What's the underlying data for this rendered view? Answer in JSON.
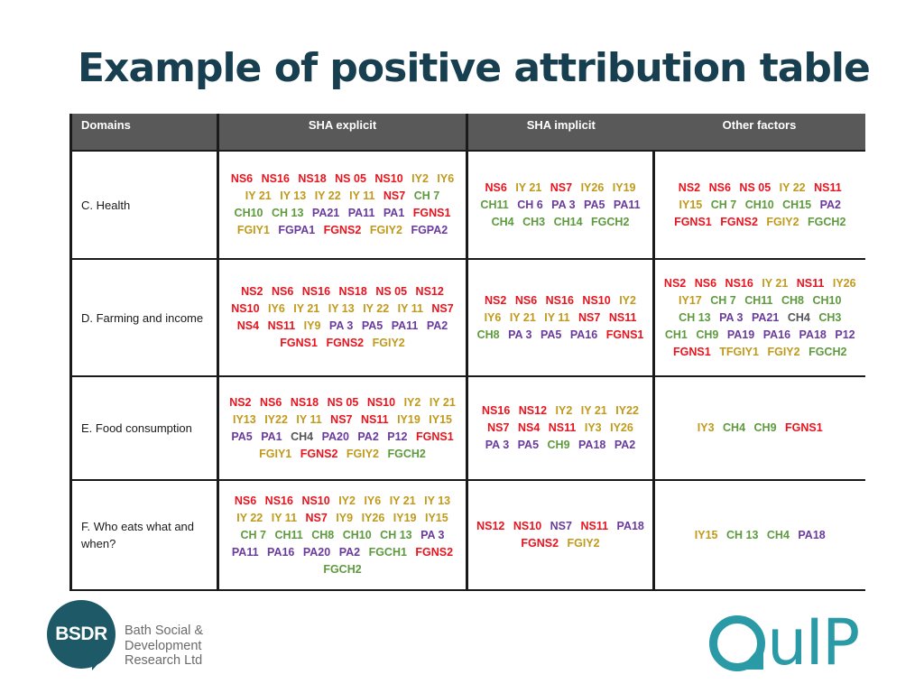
{
  "slide": {
    "title": "Example of positive attribution table"
  },
  "legend_colors": {
    "NS": "#e8141e",
    "IY": "#c19a1b",
    "CH": "#5e9a3e",
    "PA": "#6a3b9c",
    "other": "#555555"
  },
  "table": {
    "headers": [
      "Domains",
      "SHA explicit",
      "SHA implicit",
      "Other factors"
    ],
    "rows": [
      {
        "domain": "C. Health",
        "explicit": [
          {
            "t": "NS6",
            "c": "ns"
          },
          {
            "t": "NS16",
            "c": "ns"
          },
          {
            "t": "NS18",
            "c": "ns"
          },
          {
            "t": "NS 05",
            "c": "ns"
          },
          {
            "t": "NS10",
            "c": "ns"
          },
          {
            "t": "IY2",
            "c": "iy"
          },
          {
            "t": "IY6",
            "c": "iy"
          },
          {
            "t": "IY 21",
            "c": "iy"
          },
          {
            "t": "IY 13",
            "c": "iy"
          },
          {
            "t": "IY 22",
            "c": "iy"
          },
          {
            "t": "IY 11",
            "c": "iy"
          },
          {
            "t": "NS7",
            "c": "ns"
          },
          {
            "t": "CH 7",
            "c": "ch"
          },
          {
            "t": "CH10",
            "c": "ch"
          },
          {
            "t": "CH 13",
            "c": "ch"
          },
          {
            "t": "PA21",
            "c": "pa"
          },
          {
            "t": "PA11",
            "c": "pa"
          },
          {
            "t": "PA1",
            "c": "pa"
          },
          {
            "t": "FGNS1",
            "c": "ns"
          },
          {
            "t": "FGIY1",
            "c": "iy"
          },
          {
            "t": "FGPA1",
            "c": "pa"
          },
          {
            "t": "FGNS2",
            "c": "ns"
          },
          {
            "t": "FGIY2",
            "c": "iy"
          },
          {
            "t": "FGPA2",
            "c": "pa"
          }
        ],
        "implicit": [
          {
            "t": "NS6",
            "c": "ns"
          },
          {
            "t": "IY 21",
            "c": "iy"
          },
          {
            "t": "NS7",
            "c": "ns"
          },
          {
            "t": "IY26",
            "c": "iy"
          },
          {
            "t": "IY19",
            "c": "iy"
          },
          {
            "t": "CH11",
            "c": "ch"
          },
          {
            "t": "CH 6",
            "c": "pa"
          },
          {
            "t": "PA 3",
            "c": "pa"
          },
          {
            "t": "PA5",
            "c": "pa"
          },
          {
            "t": "PA11",
            "c": "pa"
          },
          {
            "t": "CH4",
            "c": "ch"
          },
          {
            "t": "CH3",
            "c": "ch"
          },
          {
            "t": "CH14",
            "c": "ch"
          },
          {
            "t": "FGCH2",
            "c": "ch"
          }
        ],
        "other": [
          {
            "t": "NS2",
            "c": "ns"
          },
          {
            "t": "NS6",
            "c": "ns"
          },
          {
            "t": "NS 05",
            "c": "ns"
          },
          {
            "t": "IY 22",
            "c": "iy"
          },
          {
            "t": "NS11",
            "c": "ns"
          },
          {
            "t": "IY15",
            "c": "iy"
          },
          {
            "t": "CH 7",
            "c": "ch"
          },
          {
            "t": "CH10",
            "c": "ch"
          },
          {
            "t": "CH15",
            "c": "ch"
          },
          {
            "t": "PA2",
            "c": "pa"
          },
          {
            "t": "FGNS1",
            "c": "ns"
          },
          {
            "t": "FGNS2",
            "c": "ns"
          },
          {
            "t": "FGIY2",
            "c": "iy"
          },
          {
            "t": "FGCH2",
            "c": "ch"
          }
        ]
      },
      {
        "domain": "D. Farming and income",
        "explicit": [
          {
            "t": "NS2",
            "c": "ns"
          },
          {
            "t": "NS6",
            "c": "ns"
          },
          {
            "t": "NS16",
            "c": "ns"
          },
          {
            "t": "NS18",
            "c": "ns"
          },
          {
            "t": "NS 05",
            "c": "ns"
          },
          {
            "t": "NS12",
            "c": "ns"
          },
          {
            "t": "NS10",
            "c": "ns"
          },
          {
            "t": "IY6",
            "c": "iy"
          },
          {
            "t": "IY 21",
            "c": "iy"
          },
          {
            "t": "IY 13",
            "c": "iy"
          },
          {
            "t": "IY 22",
            "c": "iy"
          },
          {
            "t": "IY 11",
            "c": "iy"
          },
          {
            "t": "NS7",
            "c": "ns"
          },
          {
            "t": "NS4",
            "c": "ns"
          },
          {
            "t": "NS11",
            "c": "ns"
          },
          {
            "t": "IY9",
            "c": "iy"
          },
          {
            "t": "PA 3",
            "c": "pa"
          },
          {
            "t": "PA5",
            "c": "pa"
          },
          {
            "t": "PA11",
            "c": "pa"
          },
          {
            "t": "PA2",
            "c": "pa"
          },
          {
            "t": "FGNS1",
            "c": "ns"
          },
          {
            "t": "FGNS2",
            "c": "ns"
          },
          {
            "t": "FGIY2",
            "c": "iy"
          }
        ],
        "implicit": [
          {
            "t": "NS2",
            "c": "ns"
          },
          {
            "t": "NS6",
            "c": "ns"
          },
          {
            "t": "NS16",
            "c": "ns"
          },
          {
            "t": "NS10",
            "c": "ns"
          },
          {
            "t": "IY2",
            "c": "iy"
          },
          {
            "t": "IY6",
            "c": "iy"
          },
          {
            "t": "IY 21",
            "c": "iy"
          },
          {
            "t": "IY 11",
            "c": "iy"
          },
          {
            "t": "NS7",
            "c": "ns"
          },
          {
            "t": "NS11",
            "c": "ns"
          },
          {
            "t": "CH8",
            "c": "ch"
          },
          {
            "t": "PA 3",
            "c": "pa"
          },
          {
            "t": "PA5",
            "c": "pa"
          },
          {
            "t": "PA16",
            "c": "pa"
          },
          {
            "t": "FGNS1",
            "c": "ns"
          }
        ],
        "other": [
          {
            "t": "NS2",
            "c": "ns"
          },
          {
            "t": "NS6",
            "c": "ns"
          },
          {
            "t": "NS16",
            "c": "ns"
          },
          {
            "t": "IY 21",
            "c": "iy"
          },
          {
            "t": "NS11",
            "c": "ns"
          },
          {
            "t": "IY26",
            "c": "iy"
          },
          {
            "t": "IY17",
            "c": "iy"
          },
          {
            "t": "CH 7",
            "c": "ch"
          },
          {
            "t": "CH11",
            "c": "ch"
          },
          {
            "t": "CH8",
            "c": "ch"
          },
          {
            "t": "CH10",
            "c": "ch"
          },
          {
            "t": "CH 13",
            "c": "ch"
          },
          {
            "t": "PA 3",
            "c": "pa"
          },
          {
            "t": "PA21",
            "c": "pa"
          },
          {
            "t": "CH4",
            "c": "gray"
          },
          {
            "t": "CH3",
            "c": "ch"
          },
          {
            "t": "CH1",
            "c": "ch"
          },
          {
            "t": "CH9",
            "c": "ch"
          },
          {
            "t": "PA19",
            "c": "pa"
          },
          {
            "t": "PA16",
            "c": "pa"
          },
          {
            "t": "PA18",
            "c": "pa"
          },
          {
            "t": "P12",
            "c": "pa"
          },
          {
            "t": "FGNS1",
            "c": "ns"
          },
          {
            "t": "TFGIY1",
            "c": "iy"
          },
          {
            "t": "FGIY2",
            "c": "iy"
          },
          {
            "t": "FGCH2",
            "c": "ch"
          }
        ]
      },
      {
        "domain": "E. Food consumption",
        "explicit": [
          {
            "t": "NS2",
            "c": "ns"
          },
          {
            "t": "NS6",
            "c": "ns"
          },
          {
            "t": "NS18",
            "c": "ns"
          },
          {
            "t": "NS 05",
            "c": "ns"
          },
          {
            "t": "NS10",
            "c": "ns"
          },
          {
            "t": "IY2",
            "c": "iy"
          },
          {
            "t": "IY 21",
            "c": "iy"
          },
          {
            "t": "IY13",
            "c": "iy"
          },
          {
            "t": "IY22",
            "c": "iy"
          },
          {
            "t": "IY 11",
            "c": "iy"
          },
          {
            "t": "NS7",
            "c": "ns"
          },
          {
            "t": "NS11",
            "c": "ns"
          },
          {
            "t": "IY19",
            "c": "iy"
          },
          {
            "t": "IY15",
            "c": "iy"
          },
          {
            "t": "PA5",
            "c": "pa"
          },
          {
            "t": "PA1",
            "c": "pa"
          },
          {
            "t": "CH4",
            "c": "gray"
          },
          {
            "t": "PA20",
            "c": "pa"
          },
          {
            "t": "PA2",
            "c": "pa"
          },
          {
            "t": "P12",
            "c": "pa"
          },
          {
            "t": "FGNS1",
            "c": "ns"
          },
          {
            "t": "FGIY1",
            "c": "iy"
          },
          {
            "t": "FGNS2",
            "c": "ns"
          },
          {
            "t": "FGIY2",
            "c": "iy"
          },
          {
            "t": "FGCH2",
            "c": "ch"
          }
        ],
        "implicit": [
          {
            "t": "NS16",
            "c": "ns"
          },
          {
            "t": "NS12",
            "c": "ns"
          },
          {
            "t": "IY2",
            "c": "iy"
          },
          {
            "t": "IY 21",
            "c": "iy"
          },
          {
            "t": "IY22",
            "c": "iy"
          },
          {
            "t": "NS7",
            "c": "ns"
          },
          {
            "t": "NS4",
            "c": "ns"
          },
          {
            "t": "NS11",
            "c": "ns"
          },
          {
            "t": "IY3",
            "c": "iy"
          },
          {
            "t": "IY26",
            "c": "iy"
          },
          {
            "t": "PA 3",
            "c": "pa"
          },
          {
            "t": "PA5",
            "c": "pa"
          },
          {
            "t": "CH9",
            "c": "ch"
          },
          {
            "t": "PA18",
            "c": "pa"
          },
          {
            "t": "PA2",
            "c": "pa"
          }
        ],
        "other": [
          {
            "t": "IY3",
            "c": "iy"
          },
          {
            "t": "CH4",
            "c": "ch"
          },
          {
            "t": "CH9",
            "c": "ch"
          },
          {
            "t": "FGNS1",
            "c": "ns"
          }
        ]
      },
      {
        "domain": "F. Who eats what and when?",
        "explicit": [
          {
            "t": "NS6",
            "c": "ns"
          },
          {
            "t": "NS16",
            "c": "ns"
          },
          {
            "t": "NS10",
            "c": "ns"
          },
          {
            "t": "IY2",
            "c": "iy"
          },
          {
            "t": "IY6",
            "c": "iy"
          },
          {
            "t": "IY 21",
            "c": "iy"
          },
          {
            "t": "IY 13",
            "c": "iy"
          },
          {
            "t": "IY 22",
            "c": "iy"
          },
          {
            "t": "IY 11",
            "c": "iy"
          },
          {
            "t": "NS7",
            "c": "ns"
          },
          {
            "t": "IY9",
            "c": "iy"
          },
          {
            "t": "IY26",
            "c": "iy"
          },
          {
            "t": "IY19",
            "c": "iy"
          },
          {
            "t": "IY15",
            "c": "iy"
          },
          {
            "t": "CH 7",
            "c": "ch"
          },
          {
            "t": "CH11",
            "c": "ch"
          },
          {
            "t": "CH8",
            "c": "ch"
          },
          {
            "t": "CH10",
            "c": "ch"
          },
          {
            "t": "CH 13",
            "c": "ch"
          },
          {
            "t": "PA 3",
            "c": "pa"
          },
          {
            "t": "PA11",
            "c": "pa"
          },
          {
            "t": "PA16",
            "c": "pa"
          },
          {
            "t": "PA20",
            "c": "pa"
          },
          {
            "t": "PA2",
            "c": "pa"
          },
          {
            "t": "FGCH1",
            "c": "ch"
          },
          {
            "t": "FGNS2",
            "c": "ns"
          },
          {
            "t": "FGCH2",
            "c": "ch"
          }
        ],
        "implicit": [
          {
            "t": "NS12",
            "c": "ns"
          },
          {
            "t": "NS10",
            "c": "ns"
          },
          {
            "t": "NS7",
            "c": "pa"
          },
          {
            "t": "NS11",
            "c": "ns"
          },
          {
            "t": "PA18",
            "c": "pa"
          },
          {
            "t": "FGNS2",
            "c": "ns"
          },
          {
            "t": "FGIY2",
            "c": "iy"
          }
        ],
        "other": [
          {
            "t": "IY15",
            "c": "iy"
          },
          {
            "t": "CH 13",
            "c": "ch"
          },
          {
            "t": "CH4",
            "c": "ch"
          },
          {
            "t": "PA18",
            "c": "pa"
          }
        ]
      }
    ]
  },
  "logos": {
    "bsdr": {
      "mark": "BSDR",
      "line1": "Bath Social &",
      "line2": "Development",
      "line3": "Research Ltd",
      "color": "#1d5966"
    },
    "quip": {
      "rest": "uIP",
      "color": "#2a9aa6"
    }
  }
}
